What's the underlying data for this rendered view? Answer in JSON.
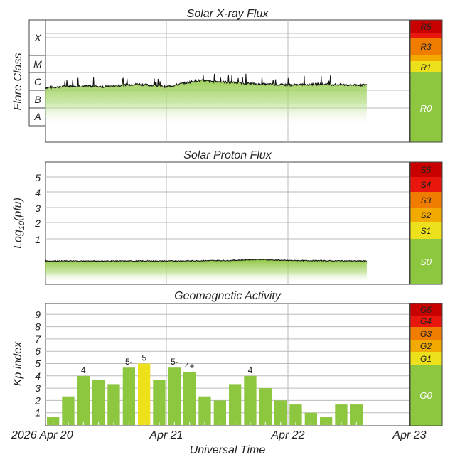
{
  "colors": {
    "green": "#8dc63f",
    "yellow": "#ede11b",
    "orange_light": "#f2a900",
    "orange": "#f07c00",
    "red": "#e8160c",
    "dark_red": "#c80000",
    "grid": "#bbbbbb"
  },
  "chart_data": [
    {
      "type": "area",
      "title": "Solar X-ray Flux",
      "ylabel": "Flare Class",
      "class_labels": [
        "X",
        "M",
        "C",
        "B",
        "A"
      ],
      "scale": [
        {
          "label": "R5",
          "color": "#c80000"
        },
        {
          "label": "R3",
          "color": "#f07c00"
        },
        {
          "label": "R1",
          "color": "#ede11b"
        },
        {
          "label": "R0",
          "color": "#8dc63f"
        }
      ],
      "x": [
        "Apr 20",
        "Apr 20.25",
        "Apr 20.5",
        "Apr 20.75",
        "Apr 21",
        "Apr 21.25",
        "Apr 21.5",
        "Apr 21.75",
        "Apr 22",
        "Apr 22.25",
        "Apr 22.5",
        "Apr 22.65"
      ],
      "flux_class_level": [
        2.15,
        2.25,
        2.2,
        2.35,
        2.2,
        2.55,
        2.45,
        2.35,
        2.3,
        2.35,
        2.3,
        2.3
      ]
    },
    {
      "type": "area",
      "title": "Solar Proton Flux",
      "ylabel": "Log10(pfu)",
      "yticks": [
        "5",
        "4",
        "3",
        "2",
        "1"
      ],
      "scale": [
        {
          "label": "S5",
          "color": "#c80000"
        },
        {
          "label": "S4",
          "color": "#e8160c"
        },
        {
          "label": "S3",
          "color": "#f07c00"
        },
        {
          "label": "S2",
          "color": "#f2a900"
        },
        {
          "label": "S1",
          "color": "#ede11b"
        },
        {
          "label": "S0",
          "color": "#8dc63f"
        }
      ],
      "x": [
        "Apr 20",
        "Apr 20.5",
        "Apr 21",
        "Apr 21.5",
        "Apr 21.75",
        "Apr 22",
        "Apr 22.65"
      ],
      "log_pfu": [
        -0.45,
        -0.45,
        -0.45,
        -0.42,
        -0.35,
        -0.42,
        -0.45
      ]
    },
    {
      "type": "bar",
      "title": "Geomagnetic Activity",
      "ylabel": "Kp index",
      "xlabel": "Universal Time",
      "ylim": [
        0,
        9.5
      ],
      "yticks": [
        "9",
        "8",
        "7",
        "6",
        "5",
        "4",
        "3",
        "2",
        "1"
      ],
      "x_ticks": [
        "2026 Apr 20",
        "Apr 21",
        "Apr 22",
        "Apr 23"
      ],
      "scale": [
        {
          "label": "G5",
          "color": "#c80000"
        },
        {
          "label": "G4",
          "color": "#e8160c"
        },
        {
          "label": "G3",
          "color": "#f07c00"
        },
        {
          "label": "G2",
          "color": "#f2a900"
        },
        {
          "label": "G1",
          "color": "#ede11b"
        },
        {
          "label": "G0",
          "color": "#8dc63f"
        }
      ],
      "values": [
        0.67,
        2.33,
        4.0,
        3.67,
        3.33,
        4.67,
        5.0,
        3.67,
        4.67,
        4.33,
        2.33,
        2.0,
        3.33,
        4.0,
        3.0,
        2.0,
        1.67,
        1.0,
        0.67,
        1.67,
        1.67
      ],
      "labels": [
        "",
        "",
        "4",
        "",
        "",
        "5-",
        "5",
        "",
        "5-",
        "4+",
        "",
        "",
        "",
        "4",
        "",
        "",
        "",
        "",
        "",
        "",
        ""
      ]
    }
  ]
}
